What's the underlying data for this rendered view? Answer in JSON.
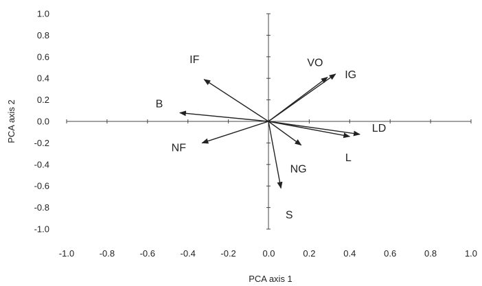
{
  "chart_data": {
    "type": "scatter",
    "subtype": "biplot-vectors",
    "title": "",
    "xlabel": "PCA axis 1",
    "ylabel": "PCA axis 2",
    "xlim": [
      -1.0,
      1.0
    ],
    "ylim": [
      -1.0,
      1.0
    ],
    "xticks": [
      "-1.0",
      "-0.8",
      "-0.6",
      "-0.4",
      "-0.2",
      "0.0",
      "0.2",
      "0.4",
      "0.6",
      "0.8",
      "1.0"
    ],
    "yticks": [
      "1.0",
      "0.8",
      "0.6",
      "0.4",
      "0.2",
      "0.0",
      "-0.2",
      "-0.4",
      "-0.6",
      "-0.8",
      "-1.0"
    ],
    "grid": false,
    "legend": "none",
    "line_color": "#222222",
    "vectors": [
      {
        "label": "IF",
        "x": -0.32,
        "y": 0.39
      },
      {
        "label": "B",
        "x": -0.44,
        "y": 0.08
      },
      {
        "label": "NF",
        "x": -0.33,
        "y": -0.2
      },
      {
        "label": "VO",
        "x": 0.29,
        "y": 0.41
      },
      {
        "label": "IG",
        "x": 0.33,
        "y": 0.44
      },
      {
        "label": "LD",
        "x": 0.45,
        "y": -0.12
      },
      {
        "label": "L",
        "x": 0.4,
        "y": -0.14
      },
      {
        "label": "NG",
        "x": 0.16,
        "y": -0.22
      },
      {
        "label": "S",
        "x": 0.06,
        "y": -0.62
      }
    ]
  }
}
